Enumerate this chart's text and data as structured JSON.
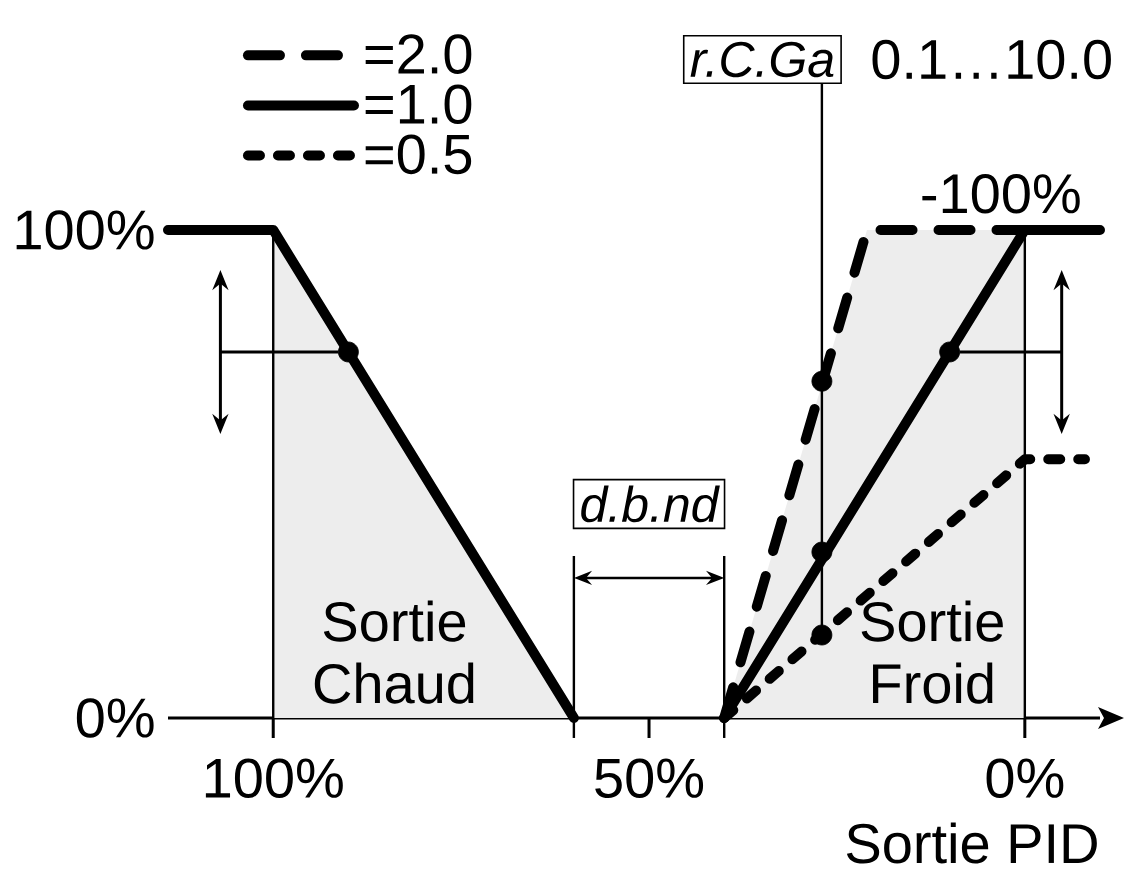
{
  "chart_data": {
    "type": "line",
    "xlabel": "Sortie PID",
    "xlim": [
      114,
      -10
    ],
    "xticks": [
      {
        "value": 100,
        "label": "100%"
      },
      {
        "value": 50,
        "label": "50%"
      },
      {
        "value": 0,
        "label": "0%"
      }
    ],
    "ylim": [
      0,
      100
    ],
    "yticks": [
      {
        "value": 0,
        "label": "0%"
      },
      {
        "value": 100,
        "label": "100%"
      }
    ],
    "series": [
      {
        "color": "#000000",
        "line_style": "solid",
        "x": [
          114,
          100,
          60
        ],
        "values": [
          100,
          100,
          0
        ],
        "lower": [
          null,
          0,
          0
        ],
        "upper": [
          null,
          100,
          0
        ]
      },
      {
        "name": "=2.0",
        "color": "#000000",
        "line_style": "dashed",
        "x": [
          40,
          21,
          0
        ],
        "values": [
          0,
          100,
          100
        ],
        "lower": [
          0,
          0,
          0
        ],
        "upper": [
          0,
          100,
          100
        ]
      },
      {
        "name": "=1.0",
        "color": "#000000",
        "line_style": "solid",
        "x": [
          40,
          0,
          -10
        ],
        "values": [
          0,
          100,
          100
        ]
      },
      {
        "name": "=0.5",
        "color": "#000000",
        "line_style": "dotted",
        "x": [
          40,
          0,
          -8
        ],
        "values": [
          0,
          53,
          53
        ]
      },
      {
        "type": "scatter",
        "color": "#000000",
        "marker": "circle",
        "x": [
          90,
          10,
          27,
          27,
          27
        ],
        "values": [
          75,
          75,
          69,
          34,
          17
        ]
      }
    ],
    "ref_lines": [
      {
        "axis": "x",
        "value": 100
      },
      {
        "axis": "x",
        "value": 0
      },
      {
        "axis": "x",
        "value": 27,
        "label": "r.C.Ga"
      }
    ],
    "legend": "top left",
    "annotations": [
      "0.1…10.0",
      "d.b.nd",
      "Sortie Chaud",
      "Sortie Froid",
      {
        "text": "-100%",
        "x": 0,
        "y": 100
      }
    ]
  }
}
